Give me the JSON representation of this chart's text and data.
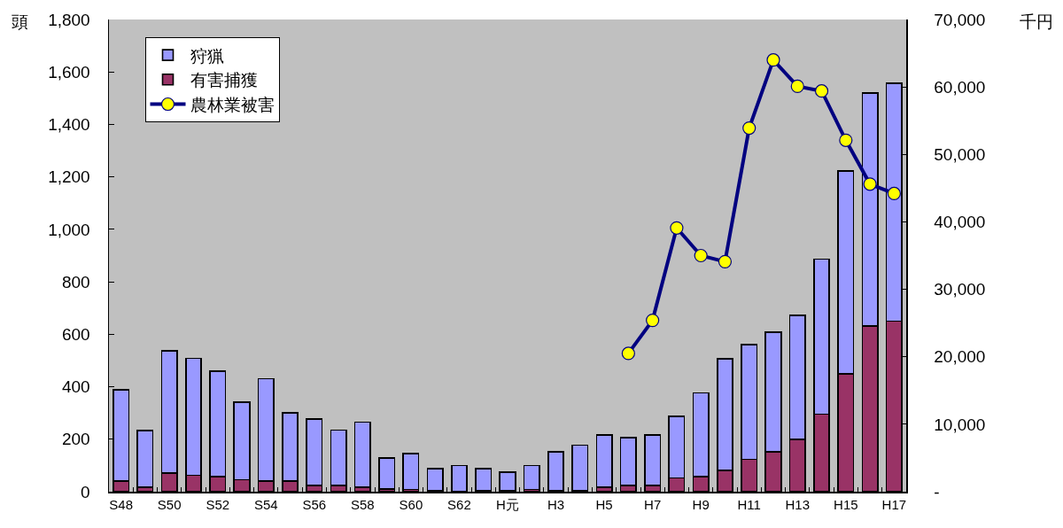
{
  "chart_data": {
    "type": "bar",
    "stacked": true,
    "ylabel": "頭",
    "y2label": "千円",
    "categories": [
      "S48",
      null,
      "S50",
      null,
      "S52",
      null,
      "S54",
      null,
      "S56",
      null,
      "S58",
      null,
      "S60",
      null,
      "S62",
      null,
      "H元",
      null,
      "H3",
      null,
      "H5",
      null,
      "H7",
      null,
      "H9",
      null,
      "H11",
      null,
      "H13",
      null,
      "H15",
      null,
      "H17"
    ],
    "series": [
      {
        "name": "有害捕獲",
        "color": "#993366",
        "values": [
          40,
          17,
          70,
          63,
          57,
          45,
          40,
          40,
          23,
          23,
          16,
          10,
          9,
          4,
          1,
          4,
          4,
          9,
          4,
          4,
          16,
          23,
          23,
          52,
          57,
          81,
          123,
          152,
          200,
          295,
          449,
          632,
          650
        ]
      },
      {
        "name": "狩猟",
        "color": "#9999ff",
        "values": [
          348,
          217,
          467,
          445,
          402,
          296,
          390,
          260,
          253,
          212,
          249,
          119,
          137,
          84,
          98,
          84,
          71,
          90,
          148,
          173,
          201,
          183,
          194,
          236,
          320,
          426,
          438,
          456,
          473,
          591,
          774,
          888,
          907
        ]
      },
      {
        "name": "農林業被害",
        "type": "line",
        "axis": "y2",
        "color": "#000080",
        "values": [
          null,
          null,
          null,
          null,
          null,
          null,
          null,
          null,
          null,
          null,
          null,
          null,
          null,
          null,
          null,
          null,
          null,
          null,
          null,
          null,
          null,
          20500,
          25400,
          39100,
          35000,
          34100,
          53900,
          64000,
          60100,
          59400,
          52100,
          45600,
          44200
        ]
      }
    ],
    "ylim": [
      0,
      1800
    ],
    "yticks": [
      0,
      200,
      400,
      600,
      800,
      {
        "value": 1000,
        "label": "1,000"
      },
      {
        "value": 1200,
        "label": "1,200"
      },
      {
        "value": 1400,
        "label": "1,400"
      },
      {
        "value": 1600,
        "label": "1,600"
      },
      {
        "value": 1800,
        "label": "1,800"
      }
    ],
    "y2lim": [
      0,
      70000
    ],
    "y2ticks": [
      {
        "value": 0,
        "label": "-"
      },
      {
        "value": 10000,
        "label": "10,000"
      },
      {
        "value": 20000,
        "label": "20,000"
      },
      {
        "value": 30000,
        "label": "30,000"
      },
      {
        "value": 40000,
        "label": "40,000"
      },
      {
        "value": 50000,
        "label": "50,000"
      },
      {
        "value": 60000,
        "label": "60,000"
      },
      {
        "value": 70000,
        "label": "70,000"
      }
    ],
    "legend": "top left",
    "marker": "circle",
    "line_style": "solid"
  }
}
